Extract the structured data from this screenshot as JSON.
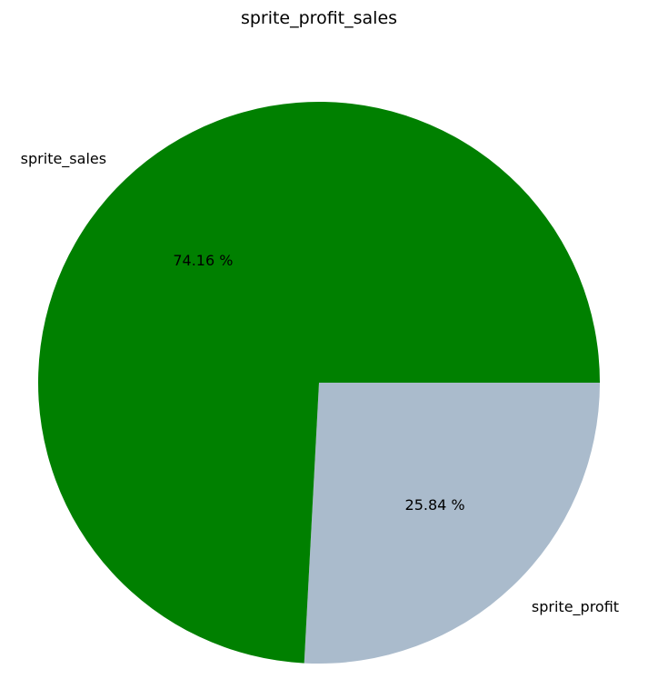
{
  "chart_data": {
    "type": "pie",
    "title": "sprite_profit_sales",
    "slices": [
      {
        "label": "sprite_profit",
        "value": 25.84,
        "pct_label": "25.84 %",
        "color": "#aabbcc"
      },
      {
        "label": "sprite_sales",
        "value": 74.16,
        "pct_label": "74.16 %",
        "color": "#008000"
      }
    ],
    "start_angle_deg": 0,
    "direction": "clockwise",
    "legend": false
  }
}
